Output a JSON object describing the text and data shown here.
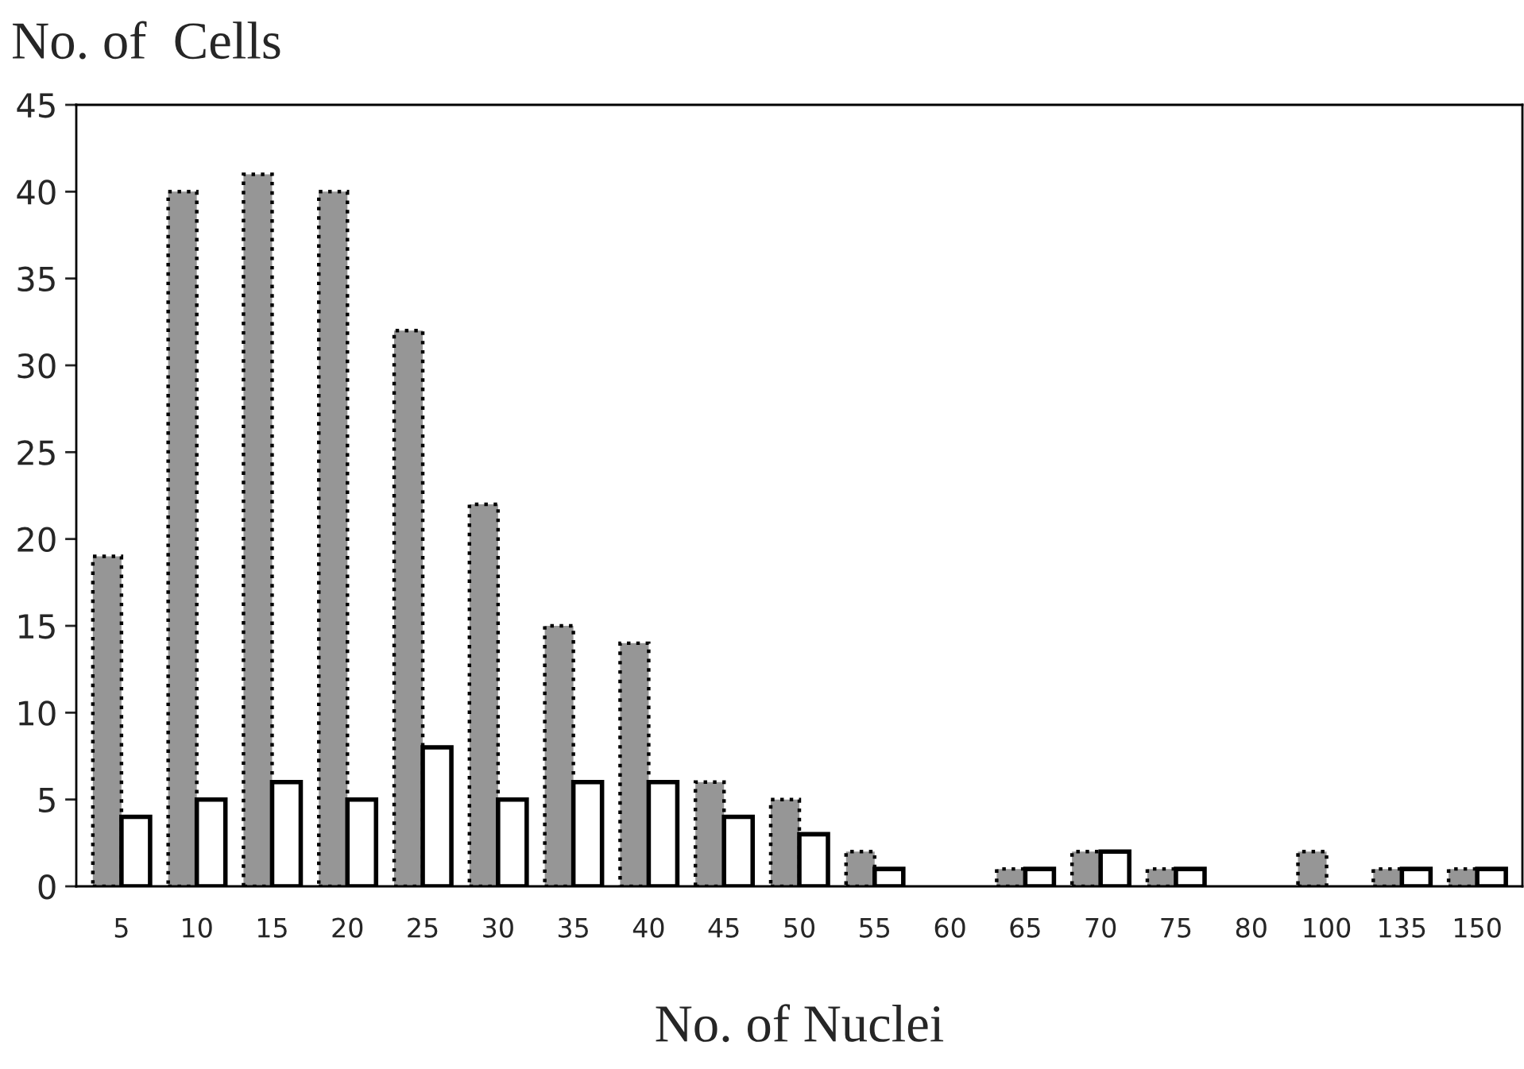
{
  "chart_data": {
    "type": "bar",
    "ylabel": "No. of  Cells",
    "xlabel": "No. of Nuclei",
    "categories": [
      "5",
      "10",
      "15",
      "20",
      "25",
      "30",
      "35",
      "40",
      "45",
      "50",
      "55",
      "60",
      "65",
      "70",
      "75",
      "80",
      "100",
      "135",
      "150"
    ],
    "series": [
      {
        "color": "#969696",
        "line_style": "dotted",
        "values": [
          19,
          40,
          41,
          40,
          32,
          22,
          15,
          14,
          6,
          5,
          2,
          0,
          1,
          2,
          1,
          0,
          2,
          1,
          1
        ]
      },
      {
        "color": "#ffffff",
        "line_style": "solid",
        "values": [
          4,
          5,
          6,
          5,
          8,
          5,
          6,
          6,
          4,
          3,
          1,
          0,
          1,
          2,
          1,
          0,
          0,
          1,
          1
        ]
      }
    ],
    "ylim": [
      0,
      45
    ],
    "yticks": [
      0,
      5,
      10,
      15,
      20,
      25,
      30,
      35,
      40,
      45
    ],
    "grid": false
  }
}
